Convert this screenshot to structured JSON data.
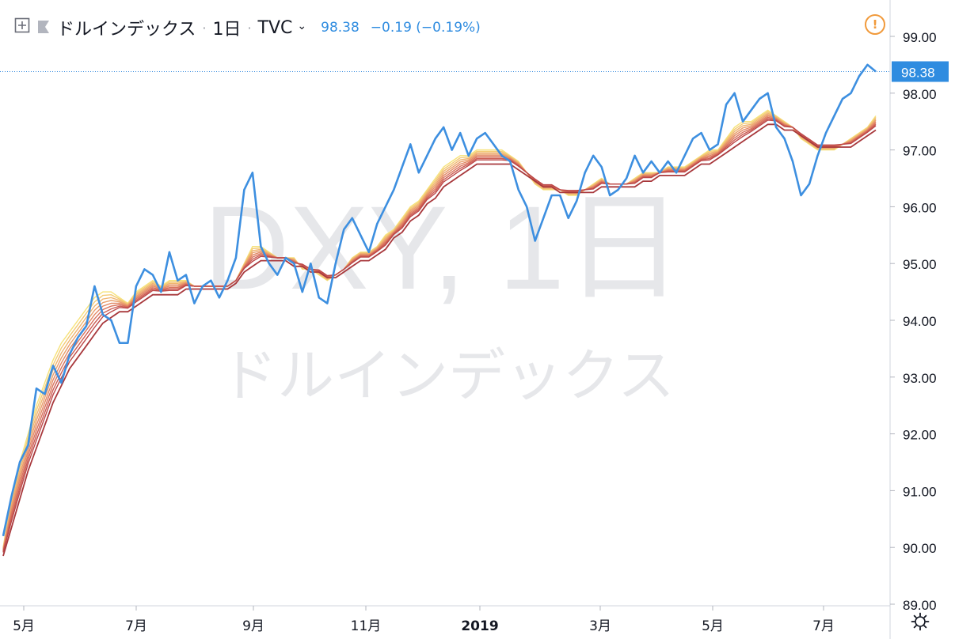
{
  "header": {
    "symbol": "ドルインデックス",
    "interval": "1日",
    "exchange": "TVC",
    "last": "98.38",
    "change": "−0.19 (−0.19%)"
  },
  "watermark": {
    "line1": "DXY, 1日",
    "line2": "ドルインデックス"
  },
  "icons": [
    "plus-square-icon",
    "flag-icon",
    "chevron-down-icon",
    "alert-icon",
    "gear-icon"
  ],
  "colors": {
    "price": "#3d8fe0",
    "accent_label": "#2f8ce0",
    "alert": "#f19a3b",
    "ribbon": [
      "#f6e27a",
      "#f3cb76",
      "#efb570",
      "#ea9f6b",
      "#e38965",
      "#d9735d",
      "#cc5d53",
      "#bd4848",
      "#a8383c"
    ]
  },
  "chart_data": {
    "type": "line",
    "title": "ドルインデックス",
    "ylim": [
      89,
      99.5
    ],
    "y_ticks": [
      89,
      90,
      91,
      92,
      93,
      94,
      95,
      96,
      97,
      98,
      99
    ],
    "y_tick_labels": [
      "89.00",
      "90.00",
      "91.00",
      "92.00",
      "93.00",
      "94.00",
      "95.00",
      "96.00",
      "97.00",
      "98.00",
      "99.00"
    ],
    "x_tick_labels": [
      "5月",
      "7月",
      "9月",
      "11月",
      "2019",
      "3月",
      "5月",
      "7月"
    ],
    "last_value_label": "98.38",
    "last_value": 98.38,
    "series": [
      {
        "values": [
          90.2,
          90.9,
          91.5,
          91.8,
          92.8,
          92.7,
          93.2,
          92.9,
          93.4,
          93.7,
          93.9,
          94.6,
          94.1,
          94.0,
          93.6,
          93.6,
          94.6,
          94.9,
          94.8,
          94.5,
          95.2,
          94.7,
          94.8,
          94.3,
          94.6,
          94.7,
          94.4,
          94.7,
          95.1,
          96.3,
          96.6,
          95.3,
          95.0,
          94.8,
          95.1,
          95.0,
          94.5,
          95.0,
          94.4,
          94.3,
          95.0,
          95.6,
          95.8,
          95.5,
          95.2,
          95.7,
          96.0,
          96.3,
          96.7,
          97.1,
          96.6,
          96.9,
          97.2,
          97.4,
          97.0,
          97.3,
          96.9,
          97.2,
          97.3,
          97.1,
          96.9,
          96.8,
          96.3,
          96.0,
          95.4,
          95.8,
          96.2,
          96.2,
          95.8,
          96.1,
          96.6,
          96.9,
          96.7,
          96.2,
          96.3,
          96.5,
          96.9,
          96.6,
          96.8,
          96.6,
          96.8,
          96.6,
          96.9,
          97.2,
          97.3,
          97.0,
          97.1,
          97.8,
          98.0,
          97.5,
          97.7,
          97.9,
          98.0,
          97.4,
          97.2,
          96.8,
          96.2,
          96.4,
          96.9,
          97.3,
          97.6,
          97.9,
          98.0,
          98.3,
          98.5,
          98.38
        ]
      },
      {
        "values": [
          90.0,
          90.9,
          91.5,
          92.0,
          92.5,
          92.9,
          93.3,
          93.6,
          93.8,
          94.0,
          94.2,
          94.4,
          94.5,
          94.5,
          94.4,
          94.3,
          94.5,
          94.6,
          94.7,
          94.6,
          94.7,
          94.7,
          94.7,
          94.6,
          94.6,
          94.6,
          94.6,
          94.6,
          94.7,
          95.0,
          95.3,
          95.3,
          95.2,
          95.1,
          95.1,
          95.1,
          94.9,
          94.9,
          94.8,
          94.7,
          94.8,
          94.9,
          95.1,
          95.2,
          95.2,
          95.3,
          95.5,
          95.6,
          95.8,
          96.0,
          96.1,
          96.3,
          96.5,
          96.7,
          96.8,
          96.9,
          96.9,
          97.0,
          97.0,
          97.0,
          97.0,
          96.9,
          96.8,
          96.6,
          96.4,
          96.3,
          96.3,
          96.3,
          96.2,
          96.2,
          96.3,
          96.4,
          96.5,
          96.4,
          96.4,
          96.4,
          96.5,
          96.6,
          96.6,
          96.6,
          96.7,
          96.7,
          96.7,
          96.8,
          96.9,
          97.0,
          97.0,
          97.2,
          97.4,
          97.5,
          97.5,
          97.6,
          97.7,
          97.6,
          97.5,
          97.4,
          97.2,
          97.1,
          97.0,
          97.0,
          97.0,
          97.1,
          97.2,
          97.3,
          97.4,
          97.6
        ]
      },
      {
        "values": [
          89.9,
          90.4,
          90.9,
          91.4,
          91.8,
          92.2,
          92.6,
          92.9,
          93.2,
          93.4,
          93.6,
          93.8,
          94.0,
          94.1,
          94.2,
          94.2,
          94.3,
          94.4,
          94.5,
          94.5,
          94.5,
          94.5,
          94.6,
          94.6,
          94.6,
          94.6,
          94.6,
          94.6,
          94.7,
          94.9,
          95.0,
          95.1,
          95.1,
          95.1,
          95.1,
          95.0,
          95.0,
          94.9,
          94.9,
          94.8,
          94.8,
          94.9,
          95.0,
          95.1,
          95.1,
          95.2,
          95.3,
          95.5,
          95.6,
          95.8,
          95.9,
          96.1,
          96.2,
          96.4,
          96.5,
          96.6,
          96.7,
          96.8,
          96.8,
          96.8,
          96.8,
          96.8,
          96.7,
          96.6,
          96.5,
          96.4,
          96.4,
          96.3,
          96.3,
          96.3,
          96.3,
          96.3,
          96.4,
          96.4,
          96.4,
          96.4,
          96.4,
          96.5,
          96.5,
          96.6,
          96.6,
          96.6,
          96.6,
          96.7,
          96.8,
          96.8,
          96.9,
          97.0,
          97.1,
          97.2,
          97.3,
          97.4,
          97.5,
          97.5,
          97.4,
          97.4,
          97.3,
          97.2,
          97.1,
          97.1,
          97.1,
          97.1,
          97.1,
          97.2,
          97.3,
          97.4
        ]
      }
    ]
  }
}
